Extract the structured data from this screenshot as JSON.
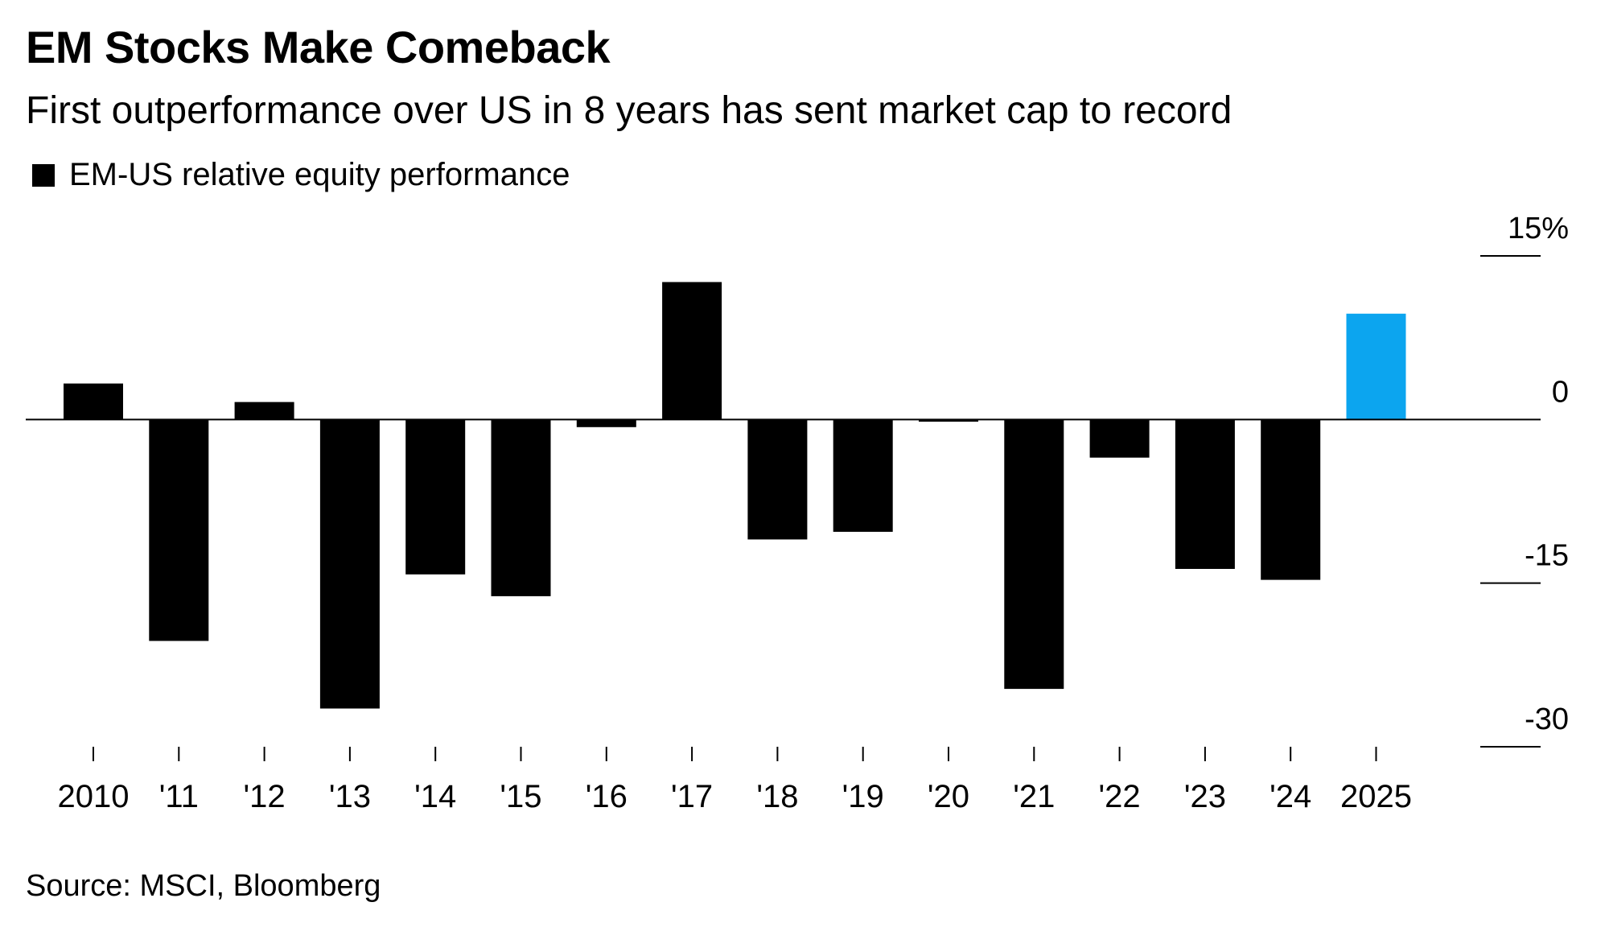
{
  "title": "EM Stocks Make Comeback",
  "subtitle": "First outperformance over US in 8 years has sent market cap to record",
  "legend": {
    "label": "EM-US relative equity performance"
  },
  "source": "Source: MSCI, Bloomberg",
  "chart_data": {
    "type": "bar",
    "categories": [
      "2010",
      "'11",
      "'12",
      "'13",
      "'14",
      "'15",
      "'16",
      "'17",
      "'18",
      "'19",
      "'20",
      "'21",
      "'22",
      "'23",
      "'24",
      "2025"
    ],
    "series": [
      {
        "name": "EM-US relative equity performance",
        "values": [
          3.3,
          -20.3,
          1.6,
          -26.5,
          -14.2,
          -16.2,
          -0.7,
          12.6,
          -11.0,
          -10.3,
          -0.2,
          -24.7,
          -3.5,
          -13.7,
          -14.7,
          9.7
        ]
      }
    ],
    "highlight_index": 15,
    "ylim": [
      -30,
      15
    ],
    "yticks": [
      15,
      0,
      -15,
      -30
    ],
    "ytick_labels": [
      "15%",
      "0",
      "-15",
      "-30"
    ],
    "y_axis_position": "right",
    "grid": false,
    "legend_position": "top-left",
    "colors": {
      "bar": "#000000",
      "highlight": "#0ca5ef",
      "axis": "#000000"
    }
  }
}
